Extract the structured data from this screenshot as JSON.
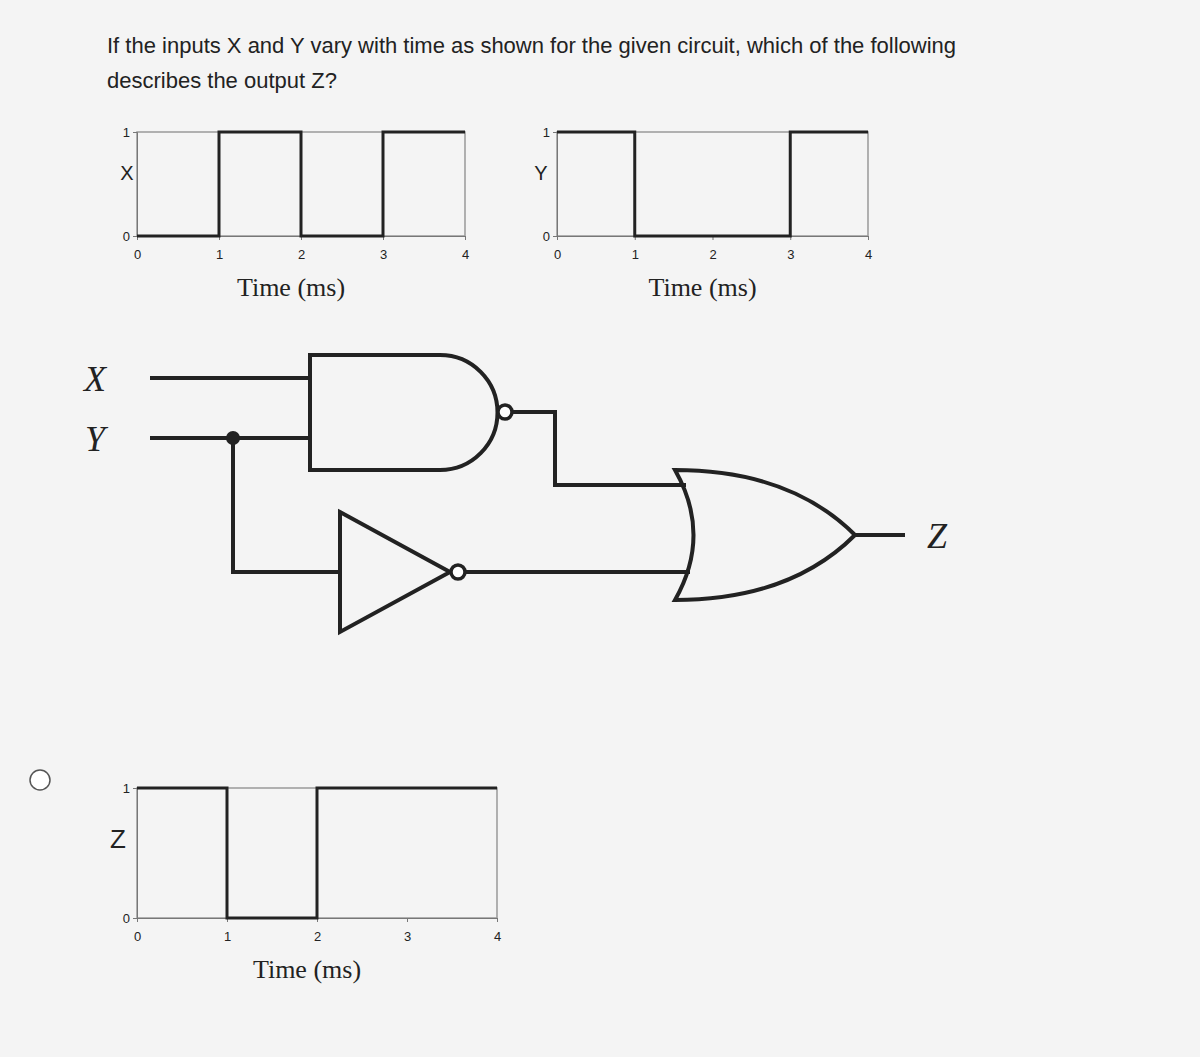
{
  "question": [
    "If the inputs X and Y vary with time as shown for the given circuit, which of the following",
    "describes the output Z?"
  ],
  "circuit": {
    "inputs": [
      "X",
      "Y"
    ],
    "output": "Z"
  },
  "chart_data": [
    {
      "type": "line",
      "ylabel": "X",
      "xlabel": "Time (ms)",
      "x": [
        0,
        1,
        1,
        2,
        2,
        3,
        3,
        4
      ],
      "values": [
        0,
        0,
        1,
        1,
        0,
        0,
        1,
        1
      ],
      "xlim": [
        0,
        4
      ],
      "ylim": [
        0,
        1
      ],
      "xticks": [
        0,
        1,
        2,
        3,
        4
      ],
      "yticks": [
        0,
        1
      ]
    },
    {
      "type": "line",
      "ylabel": "Y",
      "xlabel": "Time (ms)",
      "x": [
        0,
        1,
        1,
        3,
        3,
        4
      ],
      "values": [
        1,
        1,
        0,
        0,
        1,
        1
      ],
      "xlim": [
        0,
        4
      ],
      "ylim": [
        0,
        1
      ],
      "xticks": [
        0,
        1,
        2,
        3,
        4
      ],
      "yticks": [
        0,
        1
      ]
    },
    {
      "type": "line",
      "ylabel": "Z",
      "xlabel": "Time (ms)",
      "x": [
        0,
        1,
        1,
        2,
        2,
        4
      ],
      "values": [
        1,
        1,
        0,
        0,
        1,
        1
      ],
      "xlim": [
        0,
        4
      ],
      "ylim": [
        0,
        1
      ],
      "xticks": [
        0,
        1,
        2,
        3,
        4
      ],
      "yticks": [
        0,
        1
      ]
    }
  ]
}
